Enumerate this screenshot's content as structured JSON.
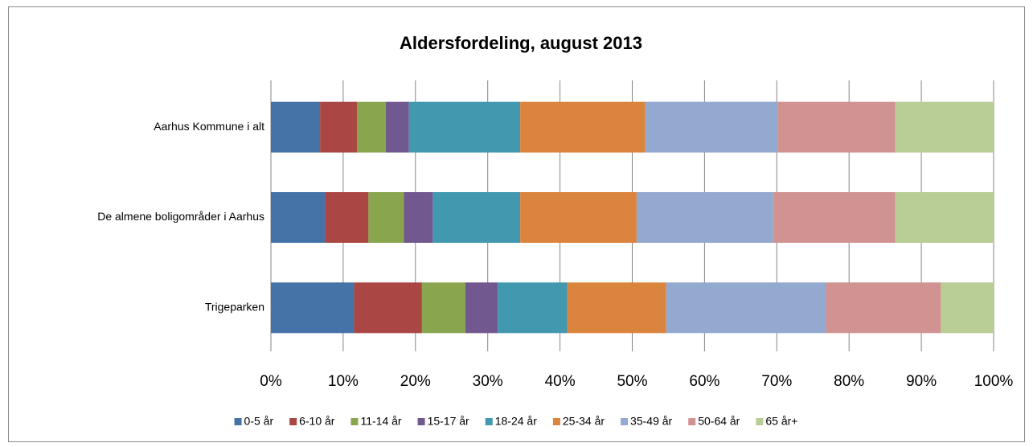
{
  "chart_data": {
    "type": "stacked_bar_horizontal",
    "title": "Aldersfordeling, august 2013",
    "categories": [
      "Aarhus Kommune i alt",
      "De almene boligområder i Aarhus",
      "Trigeparken"
    ],
    "series": [
      {
        "name": "0-5 år",
        "color": "#4572a7",
        "values": [
          6.8,
          7.5,
          11.5
        ]
      },
      {
        "name": "6-10 år",
        "color": "#aa4643",
        "values": [
          5.1,
          6.0,
          9.4
        ]
      },
      {
        "name": "11-14 år",
        "color": "#89a54e",
        "values": [
          4.0,
          4.9,
          6.0
        ]
      },
      {
        "name": "15-17 år",
        "color": "#71588f",
        "values": [
          3.2,
          4.0,
          4.5
        ]
      },
      {
        "name": "18-24 år",
        "color": "#4198af",
        "values": [
          15.4,
          12.1,
          9.6
        ]
      },
      {
        "name": "25-34 år",
        "color": "#db843d",
        "values": [
          17.3,
          16.1,
          13.7
        ]
      },
      {
        "name": "35-49 år",
        "color": "#93a9cf",
        "values": [
          18.3,
          18.9,
          22.1
        ]
      },
      {
        "name": "50-64 år",
        "color": "#d19392",
        "values": [
          16.3,
          16.9,
          15.9
        ]
      },
      {
        "name": "65 år+",
        "color": "#b9cd96",
        "values": [
          13.6,
          13.6,
          7.3
        ]
      }
    ],
    "xlim": [
      0,
      100
    ],
    "xticks": [
      {
        "value": 0,
        "label": "0%"
      },
      {
        "value": 10,
        "label": "10%"
      },
      {
        "value": 20,
        "label": "20%"
      },
      {
        "value": 30,
        "label": "30%"
      },
      {
        "value": 40,
        "label": "40%"
      },
      {
        "value": 50,
        "label": "50%"
      },
      {
        "value": 60,
        "label": "60%"
      },
      {
        "value": 70,
        "label": "70%"
      },
      {
        "value": 80,
        "label": "80%"
      },
      {
        "value": 90,
        "label": "90%"
      },
      {
        "value": 100,
        "label": "100%"
      }
    ],
    "grid": true,
    "legend": "bottom"
  }
}
